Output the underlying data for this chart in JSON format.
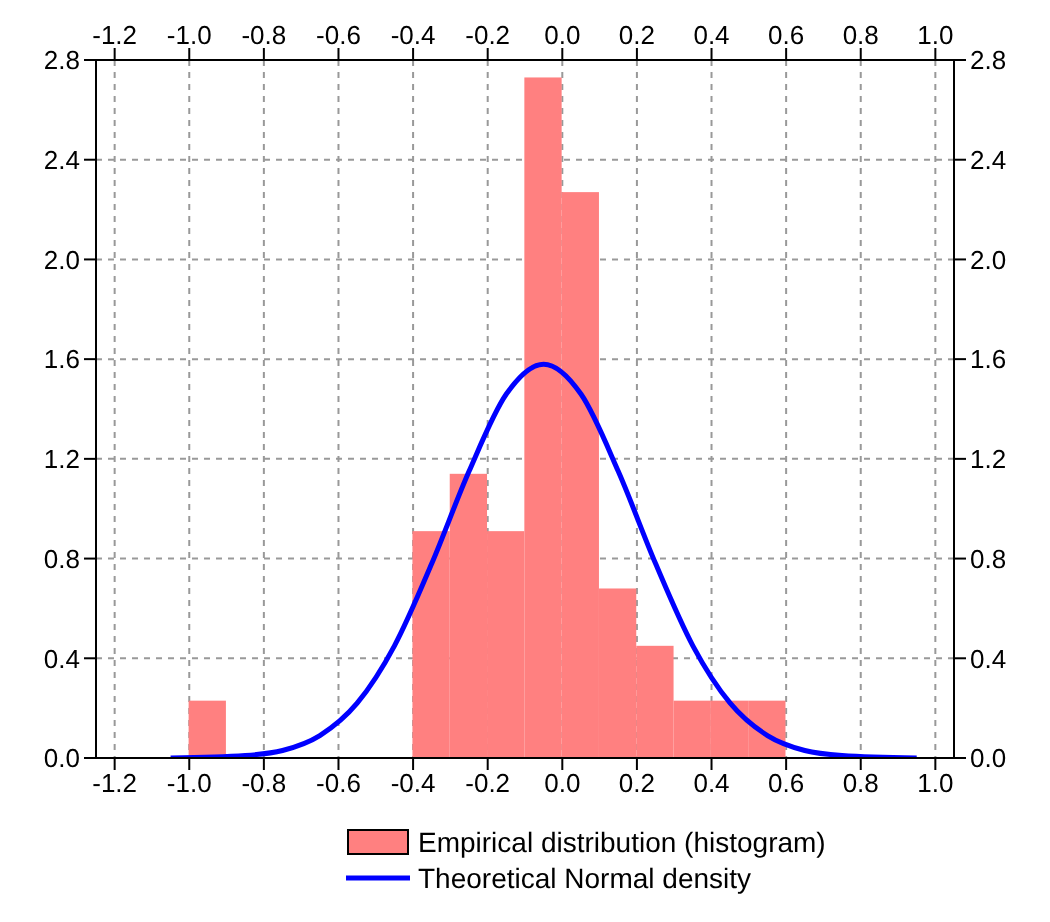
{
  "chart_data": {
    "type": "histogram",
    "xlim": [
      -1.25,
      1.05
    ],
    "ylim": [
      0,
      2.8
    ],
    "xticks": [
      -1.2,
      {
        "value": -1.0,
        "label": "-1.0"
      },
      -0.8,
      -0.6,
      -0.4,
      -0.2,
      {
        "value": 0,
        "label": "0.0"
      },
      0.2,
      0.4,
      0.6,
      0.8,
      {
        "value": 1.0,
        "label": "1.0"
      }
    ],
    "yticks": [
      {
        "value": 0,
        "label": "0.0"
      },
      0.4,
      0.8,
      1.2,
      1.6,
      {
        "value": 2.0,
        "label": "2.0"
      },
      2.4,
      2.8
    ],
    "x2lim": [
      -1.25,
      1.05
    ],
    "x2ticks": [
      -1.2,
      {
        "value": -1.0,
        "label": "-1.0"
      },
      -0.8,
      -0.6,
      -0.4,
      -0.2,
      {
        "value": 0,
        "label": "0.0"
      },
      0.2,
      0.4,
      0.6,
      0.8,
      {
        "value": 1.0,
        "label": "1.0"
      }
    ],
    "y2lim": [
      0,
      2.8
    ],
    "y2ticks": [
      {
        "value": 0,
        "label": "0.0"
      },
      0.4,
      0.8,
      1.2,
      1.6,
      {
        "value": 2.0,
        "label": "2.0"
      },
      2.4,
      2.8
    ],
    "grid": true,
    "legend": "bottom",
    "series": [
      {
        "name": "Empirical distribution (histogram)",
        "color": "#ff8080",
        "bins": [
          -1.0,
          -0.9,
          -0.8,
          -0.7,
          -0.6,
          -0.5,
          -0.4,
          -0.3,
          -0.2,
          -0.1,
          0.0,
          0.1,
          0.2,
          0.3,
          0.4,
          0.5,
          0.6
        ],
        "values": [
          0.23,
          0,
          0,
          0,
          0,
          0,
          0.91,
          1.14,
          0.91,
          2.73,
          2.27,
          0.68,
          0.45,
          0.23,
          0.23,
          0.23
        ]
      },
      {
        "type": "line",
        "name": "Theoretical Normal density",
        "color": "#0000ff",
        "x": [
          -1.05,
          -0.85,
          -0.75,
          -0.65,
          -0.55,
          -0.45,
          -0.35,
          -0.25,
          -0.15,
          -0.05,
          0.05,
          0.15,
          0.25,
          0.35,
          0.45,
          0.55,
          0.65,
          0.75,
          0.95
        ],
        "values": [
          0.0,
          0.01,
          0.03,
          0.09,
          0.22,
          0.45,
          0.78,
          1.15,
          1.46,
          1.58,
          1.46,
          1.15,
          0.78,
          0.45,
          0.22,
          0.09,
          0.03,
          0.01,
          0.0
        ]
      }
    ]
  }
}
